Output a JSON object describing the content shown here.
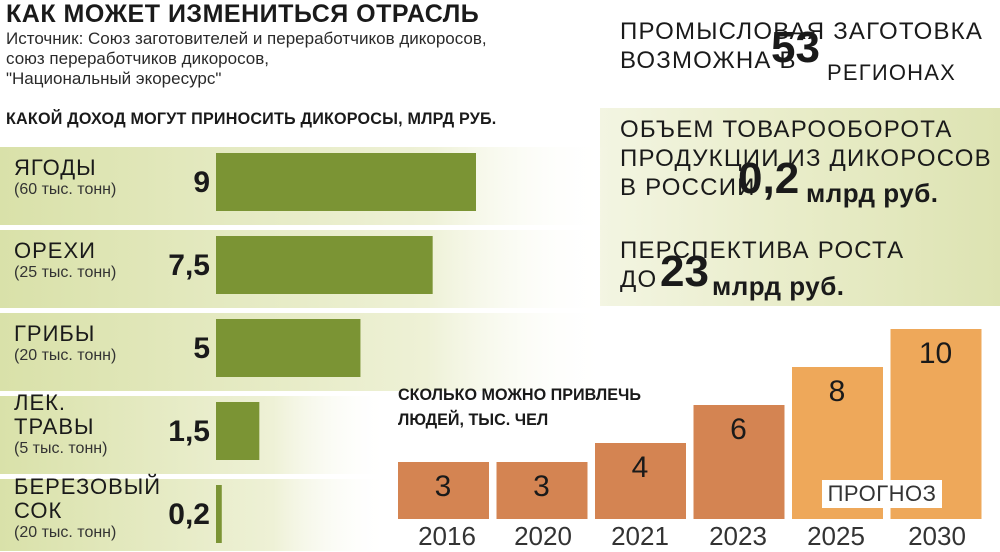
{
  "header": {
    "title": "КАК МОЖЕТ ИЗМЕНИТЬСЯ ОТРАСЛЬ",
    "source_lines": [
      "Источник: Союз заготовителей и переработчиков дикоросов,",
      "союз переработчиков дикоросов,",
      "\"Национальный экоресурс\""
    ]
  },
  "facts": {
    "regions": {
      "line1": "ПРОМЫСЛОВАЯ ЗАГОТОВКА",
      "line2_prefix": "ВОЗМОЖНА В",
      "number": "53",
      "suffix": "РЕГИОНАХ"
    },
    "turnover": {
      "line1": "ОБЪЕМ ТОВАРООБОРОТА",
      "line2": "ПРОДУКЦИИ ИЗ ДИКОРОСОВ",
      "line3_prefix": "В РОССИИ",
      "number": "0,2",
      "unit": "млрд руб."
    },
    "growth": {
      "line1": "ПЕРСПЕКТИВА РОСТА",
      "line2_prefix": "ДО",
      "number": "23",
      "unit": "млрд руб."
    }
  },
  "colors": {
    "income_bar": "#7b9434",
    "row_band": "#e7ebcb",
    "people_past": "#d48452",
    "people_forecast": "#eea85a",
    "right_panel_band": "#e3e8c1"
  },
  "chart_data": [
    {
      "type": "bar",
      "orientation": "horizontal",
      "title": "КАКОЙ ДОХОД МОГУТ ПРИНОСИТЬ ДИКОРОСЫ, МЛРД РУБ.",
      "categories": [
        {
          "name": [
            "ЯГОДЫ"
          ],
          "sub": "(60 тыс. тонн)"
        },
        {
          "name": [
            "ОРЕХИ"
          ],
          "sub": "(25 тыс. тонн)"
        },
        {
          "name": [
            "ГРИБЫ"
          ],
          "sub": "(20 тыс. тонн)"
        },
        {
          "name": [
            "ЛЕК.",
            "ТРАВЫ"
          ],
          "sub": "(5 тыс. тонн)"
        },
        {
          "name": [
            "БЕРЕЗОВЫЙ",
            "СОК"
          ],
          "sub": "(20 тыс. тонн)"
        }
      ],
      "values": [
        9,
        7.5,
        5,
        1.5,
        0.2
      ],
      "value_labels": [
        "9",
        "7,5",
        "5",
        "1,5",
        "0,2"
      ],
      "xlim": [
        0,
        9
      ]
    },
    {
      "type": "bar",
      "title_lines": [
        "СКОЛЬКО МОЖНО ПРИВЛЕЧЬ",
        "ЛЮДЕЙ, ТЫС. ЧЕЛ"
      ],
      "categories": [
        "2016",
        "2020",
        "2021",
        "2023",
        "2025",
        "2030"
      ],
      "values": [
        3,
        3,
        4,
        6,
        8,
        10
      ],
      "forecast_from_index": 4,
      "annotation": "ПРОГНОЗ",
      "ylim": [
        0,
        10
      ]
    }
  ]
}
